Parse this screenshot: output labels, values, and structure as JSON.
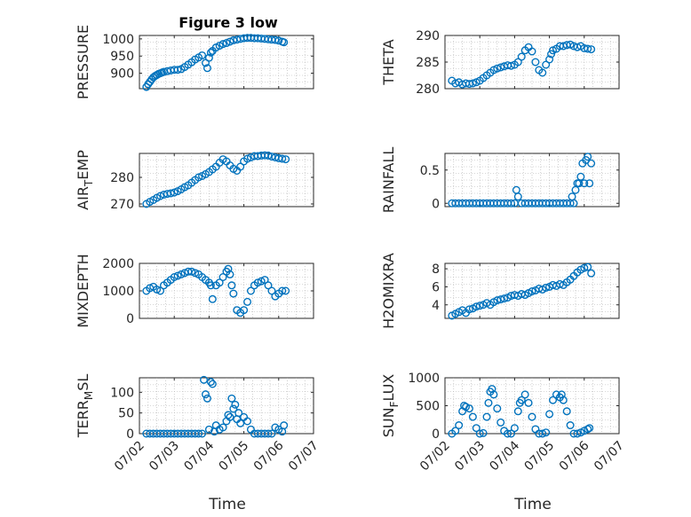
{
  "title": "Figure 3 low",
  "marker_color": "#0072BD",
  "chart_data": [
    {
      "type": "scatter",
      "ylabel": "PRESSURE",
      "title": "Figure 3 low",
      "ylim": [
        855,
        1010
      ],
      "yticks": [
        900,
        950,
        1000
      ],
      "grid": true,
      "x": [
        2.2,
        2.25,
        2.3,
        2.35,
        2.4,
        2.45,
        2.5,
        2.55,
        2.6,
        2.65,
        2.7,
        2.8,
        2.9,
        3.0,
        3.1,
        3.2,
        3.3,
        3.4,
        3.5,
        3.6,
        3.7,
        3.8,
        3.9,
        3.95,
        4.0,
        4.05,
        4.1,
        4.2,
        4.3,
        4.4,
        4.5,
        4.6,
        4.7,
        4.8,
        4.9,
        5.0,
        5.1,
        5.2,
        5.3,
        5.4,
        5.5,
        5.6,
        5.7,
        5.8,
        5.9,
        6.0,
        6.1,
        6.15
      ],
      "y": [
        860,
        868,
        875,
        882,
        888,
        892,
        895,
        898,
        900,
        902,
        904,
        906,
        908,
        910,
        910,
        912,
        918,
        925,
        932,
        940,
        946,
        952,
        930,
        915,
        945,
        960,
        965,
        975,
        980,
        985,
        988,
        992,
        996,
        998,
        1000,
        1002,
        1003,
        1003,
        1002,
        1002,
        1001,
        1000,
        999,
        998,
        997,
        995,
        992,
        990
      ]
    },
    {
      "type": "scatter",
      "ylabel": "THETA",
      "ylim": [
        280,
        290
      ],
      "yticks": [
        280,
        285,
        290
      ],
      "grid": true,
      "x": [
        2.2,
        2.3,
        2.4,
        2.5,
        2.6,
        2.7,
        2.8,
        2.9,
        3.0,
        3.1,
        3.2,
        3.3,
        3.4,
        3.5,
        3.6,
        3.7,
        3.8,
        3.9,
        4.0,
        4.1,
        4.2,
        4.3,
        4.4,
        4.5,
        4.6,
        4.7,
        4.8,
        4.9,
        5.0,
        5.05,
        5.1,
        5.2,
        5.3,
        5.4,
        5.5,
        5.6,
        5.7,
        5.8,
        5.9,
        6.0,
        6.1,
        6.2
      ],
      "y": [
        281.5,
        281.0,
        281.2,
        280.8,
        281.0,
        280.9,
        281.0,
        281.2,
        281.5,
        282.0,
        282.5,
        283.0,
        283.5,
        283.8,
        284.0,
        284.2,
        284.4,
        284.3,
        284.5,
        285.0,
        286.0,
        287.2,
        287.8,
        287.0,
        285.0,
        283.5,
        283.0,
        284.5,
        285.5,
        286.5,
        287.2,
        287.5,
        288.0,
        288.0,
        288.2,
        288.3,
        288.0,
        287.8,
        288.0,
        287.6,
        287.5,
        287.4
      ]
    },
    {
      "type": "scatter",
      "ylabel": "AIR_TEMP",
      "ylim": [
        269,
        289
      ],
      "yticks": [
        270,
        280
      ],
      "grid": true,
      "x": [
        2.2,
        2.3,
        2.4,
        2.5,
        2.6,
        2.7,
        2.8,
        2.9,
        3.0,
        3.1,
        3.2,
        3.3,
        3.4,
        3.5,
        3.6,
        3.7,
        3.8,
        3.9,
        4.0,
        4.1,
        4.2,
        4.3,
        4.4,
        4.5,
        4.6,
        4.7,
        4.8,
        4.9,
        5.0,
        5.1,
        5.2,
        5.3,
        5.4,
        5.5,
        5.6,
        5.7,
        5.8,
        5.9,
        6.0,
        6.1,
        6.2
      ],
      "y": [
        270.0,
        270.8,
        271.5,
        272.3,
        273.0,
        273.5,
        273.8,
        274.0,
        274.3,
        274.8,
        275.5,
        276.3,
        277.0,
        278.0,
        279.0,
        280.0,
        280.5,
        281.2,
        282.0,
        283.0,
        284.0,
        285.5,
        286.8,
        286.0,
        284.5,
        283.2,
        282.5,
        284.0,
        286.0,
        287.0,
        287.5,
        288.0,
        288.0,
        288.2,
        288.3,
        288.2,
        287.8,
        287.5,
        287.2,
        287.0,
        286.8
      ]
    },
    {
      "type": "scatter",
      "ylabel": "RAINFALL",
      "ylim": [
        -0.05,
        0.75
      ],
      "yticks": [
        0,
        0.5
      ],
      "grid": true,
      "x": [
        2.2,
        2.3,
        2.4,
        2.5,
        2.6,
        2.7,
        2.8,
        2.9,
        3.0,
        3.1,
        3.2,
        3.3,
        3.4,
        3.5,
        3.6,
        3.7,
        3.8,
        3.9,
        4.0,
        4.05,
        4.1,
        4.2,
        4.3,
        4.4,
        4.5,
        4.6,
        4.7,
        4.8,
        4.9,
        5.0,
        5.1,
        5.2,
        5.3,
        5.4,
        5.5,
        5.6,
        5.65,
        5.7,
        5.75,
        5.8,
        5.85,
        5.9,
        5.95,
        6.0,
        6.05,
        6.1,
        6.15,
        6.2
      ],
      "y": [
        0,
        0,
        0,
        0,
        0,
        0,
        0,
        0,
        0,
        0,
        0,
        0,
        0,
        0,
        0,
        0,
        0,
        0,
        0,
        0.2,
        0.1,
        0,
        0,
        0,
        0,
        0,
        0,
        0,
        0,
        0,
        0,
        0,
        0,
        0,
        0,
        0,
        0.1,
        0,
        0.2,
        0.3,
        0.3,
        0.4,
        0.6,
        0.3,
        0.65,
        0.7,
        0.3,
        0.6
      ]
    },
    {
      "type": "scatter",
      "ylabel": "MIXDEPTH",
      "ylim": [
        0,
        2000
      ],
      "yticks": [
        0,
        1000,
        2000
      ],
      "grid": true,
      "x": [
        2.2,
        2.3,
        2.4,
        2.5,
        2.6,
        2.7,
        2.8,
        2.9,
        3.0,
        3.1,
        3.2,
        3.3,
        3.4,
        3.5,
        3.6,
        3.7,
        3.8,
        3.9,
        4.0,
        4.05,
        4.1,
        4.2,
        4.3,
        4.4,
        4.5,
        4.55,
        4.6,
        4.65,
        4.7,
        4.8,
        4.9,
        5.0,
        5.1,
        5.2,
        5.3,
        5.4,
        5.5,
        5.6,
        5.7,
        5.8,
        5.9,
        6.0,
        6.1,
        6.2
      ],
      "y": [
        1000,
        1100,
        1150,
        1050,
        1000,
        1200,
        1300,
        1400,
        1500,
        1550,
        1600,
        1650,
        1700,
        1700,
        1650,
        1600,
        1500,
        1400,
        1300,
        1200,
        700,
        1200,
        1300,
        1500,
        1700,
        1800,
        1600,
        1200,
        900,
        300,
        200,
        300,
        600,
        1000,
        1200,
        1300,
        1350,
        1400,
        1200,
        1000,
        800,
        900,
        1000,
        1000
      ]
    },
    {
      "type": "scatter",
      "ylabel": "H2OMIXRA",
      "ylim": [
        2.5,
        8.6
      ],
      "yticks": [
        4,
        6,
        8
      ],
      "grid": true,
      "x": [
        2.2,
        2.3,
        2.4,
        2.5,
        2.6,
        2.7,
        2.8,
        2.9,
        3.0,
        3.1,
        3.2,
        3.3,
        3.4,
        3.5,
        3.6,
        3.7,
        3.8,
        3.9,
        4.0,
        4.1,
        4.2,
        4.3,
        4.4,
        4.5,
        4.6,
        4.7,
        4.8,
        4.9,
        5.0,
        5.1,
        5.2,
        5.3,
        5.4,
        5.5,
        5.6,
        5.7,
        5.8,
        5.9,
        6.0,
        6.1,
        6.2
      ],
      "y": [
        2.8,
        3.0,
        3.2,
        3.4,
        3.1,
        3.5,
        3.6,
        3.8,
        3.9,
        4.0,
        4.2,
        4.0,
        4.3,
        4.5,
        4.6,
        4.7,
        4.8,
        5.0,
        5.1,
        5.0,
        5.2,
        5.1,
        5.3,
        5.5,
        5.6,
        5.8,
        5.7,
        5.9,
        6.0,
        6.2,
        6.1,
        6.3,
        6.2,
        6.5,
        6.8,
        7.2,
        7.6,
        7.9,
        8.1,
        8.2,
        7.5
      ]
    },
    {
      "type": "scatter",
      "ylabel": "TERR_MSL",
      "ylim": [
        0,
        135
      ],
      "yticks": [
        0,
        50,
        100
      ],
      "grid": true,
      "x": [
        2.2,
        2.3,
        2.4,
        2.5,
        2.6,
        2.7,
        2.8,
        2.9,
        3.0,
        3.1,
        3.2,
        3.3,
        3.4,
        3.5,
        3.6,
        3.7,
        3.8,
        3.85,
        3.9,
        3.95,
        4.0,
        4.05,
        4.1,
        4.15,
        4.2,
        4.3,
        4.4,
        4.5,
        4.55,
        4.6,
        4.65,
        4.7,
        4.75,
        4.8,
        4.85,
        4.9,
        5.0,
        5.1,
        5.2,
        5.3,
        5.4,
        5.5,
        5.6,
        5.7,
        5.8,
        5.9,
        6.0,
        6.1,
        6.15
      ],
      "y": [
        0,
        0,
        0,
        0,
        0,
        0,
        0,
        0,
        0,
        0,
        0,
        0,
        0,
        0,
        0,
        0,
        0,
        130,
        95,
        85,
        10,
        125,
        120,
        5,
        20,
        10,
        15,
        30,
        45,
        40,
        85,
        60,
        70,
        35,
        50,
        25,
        40,
        30,
        10,
        0,
        0,
        0,
        0,
        0,
        0,
        15,
        10,
        5,
        20
      ]
    },
    {
      "type": "scatter",
      "ylabel": "SUN_FLUX",
      "ylim": [
        0,
        1000
      ],
      "yticks": [
        0,
        500,
        1000
      ],
      "grid": true,
      "x": [
        2.2,
        2.3,
        2.4,
        2.5,
        2.55,
        2.6,
        2.7,
        2.8,
        2.9,
        3.0,
        3.1,
        3.2,
        3.25,
        3.3,
        3.35,
        3.4,
        3.5,
        3.6,
        3.7,
        3.8,
        3.9,
        4.0,
        4.1,
        4.15,
        4.2,
        4.3,
        4.4,
        4.5,
        4.6,
        4.7,
        4.8,
        4.9,
        5.0,
        5.1,
        5.2,
        5.3,
        5.35,
        5.4,
        5.5,
        5.6,
        5.7,
        5.8,
        5.9,
        6.0,
        6.1,
        6.15
      ],
      "y": [
        0,
        50,
        150,
        400,
        500,
        480,
        450,
        300,
        100,
        0,
        10,
        300,
        550,
        750,
        800,
        700,
        450,
        200,
        50,
        0,
        0,
        100,
        400,
        550,
        600,
        700,
        550,
        300,
        80,
        0,
        0,
        20,
        350,
        600,
        700,
        650,
        700,
        600,
        400,
        150,
        0,
        0,
        20,
        50,
        80,
        100
      ]
    }
  ],
  "x_axis": {
    "label": "Time",
    "xlim": [
      2.0,
      7.0
    ],
    "ticks": [
      2,
      3,
      4,
      5,
      6,
      7
    ],
    "tick_labels": [
      "07/02",
      "07/03",
      "07/04",
      "07/05",
      "07/06",
      "07/07"
    ]
  }
}
